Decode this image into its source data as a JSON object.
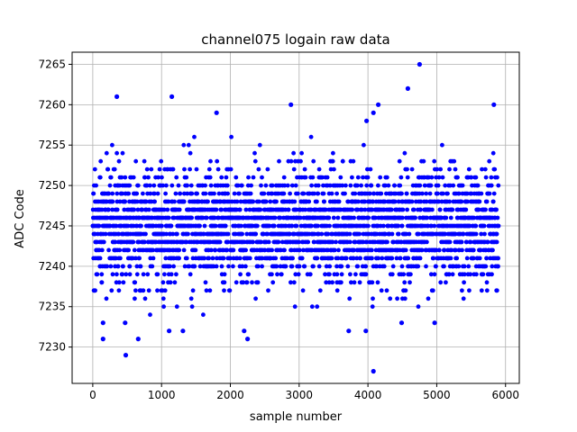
{
  "chart_data": {
    "type": "scatter",
    "title": "channel075 logain raw data",
    "xlabel": "sample number",
    "ylabel": "ADC Code",
    "xlim": [
      -300,
      6200
    ],
    "ylim": [
      7225.5,
      7266.5
    ],
    "xticks": [
      0,
      1000,
      2000,
      3000,
      4000,
      5000,
      6000
    ],
    "yticks": [
      7230,
      7235,
      7240,
      7245,
      7250,
      7255,
      7260,
      7265
    ],
    "grid": true,
    "marker_color": "#0000ff",
    "n_samples": 5900,
    "band": {
      "dense_range": [
        7234,
        7256
      ],
      "typical_center": 7245
    },
    "outliers": [
      {
        "x": 4750,
        "y": 7265
      },
      {
        "x": 4580,
        "y": 7262
      },
      {
        "x": 350,
        "y": 7261
      },
      {
        "x": 1150,
        "y": 7261
      },
      {
        "x": 2880,
        "y": 7260
      },
      {
        "x": 4150,
        "y": 7260
      },
      {
        "x": 5830,
        "y": 7260
      },
      {
        "x": 4080,
        "y": 7259
      },
      {
        "x": 1800,
        "y": 7259
      },
      {
        "x": 3980,
        "y": 7258
      },
      {
        "x": 480,
        "y": 7229
      },
      {
        "x": 150,
        "y": 7231
      },
      {
        "x": 660,
        "y": 7231
      },
      {
        "x": 2250,
        "y": 7231
      },
      {
        "x": 2200,
        "y": 7232
      },
      {
        "x": 1110,
        "y": 7232
      },
      {
        "x": 1310,
        "y": 7232
      },
      {
        "x": 3720,
        "y": 7232
      },
      {
        "x": 3970,
        "y": 7232
      },
      {
        "x": 4080,
        "y": 7227
      },
      {
        "x": 150,
        "y": 7233
      },
      {
        "x": 470,
        "y": 7233
      },
      {
        "x": 4490,
        "y": 7233
      },
      {
        "x": 4970,
        "y": 7233
      }
    ]
  }
}
